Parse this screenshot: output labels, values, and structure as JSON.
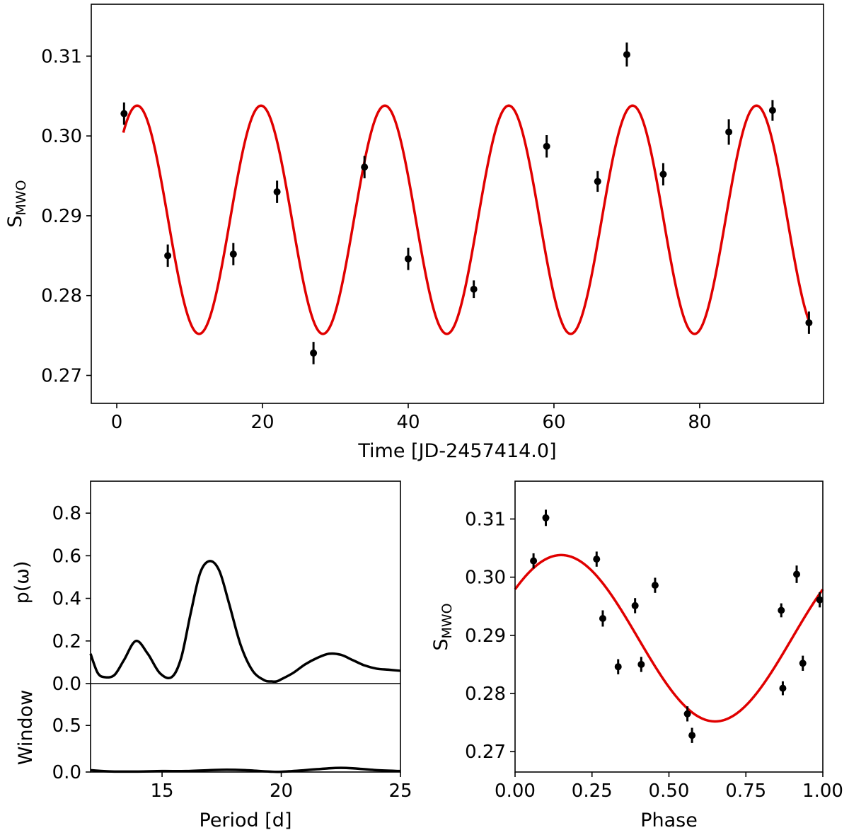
{
  "chart_data": [
    {
      "id": "time_series",
      "type": "scatter",
      "xlabel": "Time [JD-2457414.0]",
      "ylabel": "S",
      "ylabel_sub": "MWO",
      "xlim": [
        -3.5,
        97
      ],
      "ylim": [
        0.2665,
        0.3165
      ],
      "xticks": [
        0,
        20,
        40,
        60,
        80
      ],
      "yticks": [
        0.27,
        0.28,
        0.29,
        0.3,
        0.31
      ],
      "ytick_labels": [
        "0.27",
        "0.28",
        "0.29",
        "0.30",
        "0.31"
      ],
      "grid": false,
      "points": [
        {
          "x": 1.0,
          "y": 0.3028,
          "err": 0.0014
        },
        {
          "x": 7.0,
          "y": 0.285,
          "err": 0.0014
        },
        {
          "x": 16.0,
          "y": 0.2852,
          "err": 0.0014
        },
        {
          "x": 22.0,
          "y": 0.293,
          "err": 0.0014
        },
        {
          "x": 27.0,
          "y": 0.2728,
          "err": 0.0014
        },
        {
          "x": 34.0,
          "y": 0.2961,
          "err": 0.0014
        },
        {
          "x": 40.0,
          "y": 0.2846,
          "err": 0.0014
        },
        {
          "x": 49.0,
          "y": 0.2808,
          "err": 0.0011
        },
        {
          "x": 59.0,
          "y": 0.2987,
          "err": 0.0014
        },
        {
          "x": 66.0,
          "y": 0.2943,
          "err": 0.0013
        },
        {
          "x": 70.0,
          "y": 0.3102,
          "err": 0.0015
        },
        {
          "x": 75.0,
          "y": 0.2952,
          "err": 0.0014
        },
        {
          "x": 84.0,
          "y": 0.3005,
          "err": 0.0016
        },
        {
          "x": 90.0,
          "y": 0.3032,
          "err": 0.0013
        },
        {
          "x": 95.0,
          "y": 0.2766,
          "err": 0.0014
        }
      ],
      "fit": {
        "mean": 0.2895,
        "amplitude": 0.0143,
        "period": 17.0,
        "peak_x": 2.8,
        "x_range": [
          0.9,
          95.0
        ],
        "color": "#e00000"
      }
    },
    {
      "id": "periodogram",
      "type": "line",
      "xlabel": "",
      "ylabel": "p(ω)",
      "xlim": [
        12,
        25
      ],
      "ylim": [
        0.0,
        0.95
      ],
      "xticks": [
        15,
        20,
        25
      ],
      "yticks": [
        0.0,
        0.2,
        0.4,
        0.6,
        0.8
      ],
      "ytick_labels": [
        "0.0",
        "0.2",
        "0.4",
        "0.6",
        "0.8"
      ],
      "x": [
        12.0,
        12.3,
        12.6,
        13.0,
        13.4,
        13.9,
        14.4,
        14.9,
        15.4,
        15.8,
        16.2,
        16.6,
        17.0,
        17.4,
        17.8,
        18.3,
        18.8,
        19.3,
        19.6,
        19.8,
        20.0,
        20.5,
        21.0,
        21.5,
        22.0,
        22.5,
        23.0,
        23.5,
        24.0,
        24.5,
        25.0
      ],
      "y": [
        0.14,
        0.05,
        0.03,
        0.04,
        0.11,
        0.2,
        0.14,
        0.05,
        0.03,
        0.12,
        0.33,
        0.52,
        0.575,
        0.53,
        0.38,
        0.18,
        0.06,
        0.015,
        0.01,
        0.01,
        0.02,
        0.05,
        0.09,
        0.12,
        0.14,
        0.135,
        0.11,
        0.085,
        0.07,
        0.065,
        0.06
      ]
    },
    {
      "id": "window",
      "type": "line",
      "xlabel": "Period [d]",
      "ylabel": "Window",
      "xlim": [
        12,
        25
      ],
      "ylim": [
        0.0,
        0.95
      ],
      "xticks": [
        15,
        20,
        25
      ],
      "xtick_labels": [
        "15",
        "20",
        "25"
      ],
      "yticks": [
        0.0,
        0.5
      ],
      "ytick_labels": [
        "0.0",
        "0.5"
      ],
      "x": [
        12.0,
        12.5,
        13.0,
        14.0,
        15.0,
        16.0,
        17.0,
        17.7,
        18.5,
        19.5,
        20.0,
        21.0,
        22.0,
        22.5,
        23.0,
        24.0,
        25.0
      ],
      "y": [
        0.02,
        0.01,
        0.005,
        0.005,
        0.01,
        0.01,
        0.02,
        0.025,
        0.02,
        0.005,
        0.003,
        0.02,
        0.04,
        0.045,
        0.04,
        0.02,
        0.01
      ]
    },
    {
      "id": "phase_fold",
      "type": "scatter",
      "xlabel": "Phase",
      "ylabel": "S",
      "ylabel_sub": "MWO",
      "xlim": [
        0.0,
        1.0
      ],
      "ylim": [
        0.2665,
        0.3165
      ],
      "xticks": [
        0.0,
        0.25,
        0.5,
        0.75,
        1.0
      ],
      "xtick_labels": [
        "0.00",
        "0.25",
        "0.50",
        "0.75",
        "1.00"
      ],
      "yticks": [
        0.27,
        0.28,
        0.29,
        0.3,
        0.31
      ],
      "ytick_labels": [
        "0.27",
        "0.28",
        "0.29",
        "0.30",
        "0.31"
      ],
      "grid": false,
      "points": [
        {
          "x": 0.06,
          "y": 0.3028,
          "err": 0.0013
        },
        {
          "x": 0.1,
          "y": 0.3102,
          "err": 0.0014
        },
        {
          "x": 0.265,
          "y": 0.3031,
          "err": 0.0013
        },
        {
          "x": 0.285,
          "y": 0.2929,
          "err": 0.0014
        },
        {
          "x": 0.335,
          "y": 0.2846,
          "err": 0.0013
        },
        {
          "x": 0.39,
          "y": 0.2951,
          "err": 0.0013
        },
        {
          "x": 0.41,
          "y": 0.285,
          "err": 0.0013
        },
        {
          "x": 0.455,
          "y": 0.2986,
          "err": 0.0013
        },
        {
          "x": 0.56,
          "y": 0.2765,
          "err": 0.0013
        },
        {
          "x": 0.575,
          "y": 0.2728,
          "err": 0.0013
        },
        {
          "x": 0.865,
          "y": 0.2943,
          "err": 0.0012
        },
        {
          "x": 0.87,
          "y": 0.2809,
          "err": 0.0012
        },
        {
          "x": 0.915,
          "y": 0.3005,
          "err": 0.0015
        },
        {
          "x": 0.935,
          "y": 0.2852,
          "err": 0.0013
        },
        {
          "x": 0.99,
          "y": 0.2961,
          "err": 0.0013
        }
      ],
      "fit": {
        "mean": 0.2895,
        "amplitude": 0.0143,
        "period": 1.0,
        "peak_x": 0.15,
        "x_range": [
          0.0,
          1.0
        ],
        "color": "#e00000"
      }
    }
  ]
}
